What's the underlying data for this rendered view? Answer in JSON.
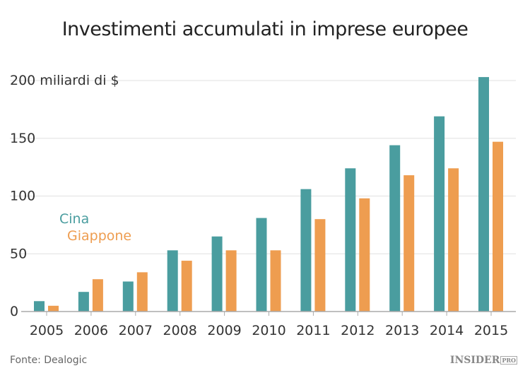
{
  "chart_data": {
    "type": "bar",
    "title": "Investimenti accumulati in imprese europee",
    "ylabel": "200 miliardi di $",
    "categories": [
      "2005",
      "2006",
      "2007",
      "2008",
      "2009",
      "2010",
      "2011",
      "2012",
      "2013",
      "2014",
      "2015"
    ],
    "yticks": [
      "0",
      "50",
      "100",
      "150"
    ],
    "ylim": [
      0,
      210
    ],
    "grid": true,
    "legend_placement": "left-middle",
    "series": [
      {
        "name": "Cina",
        "color": "#4a9d9f",
        "values": [
          9,
          17,
          26,
          53,
          65,
          81,
          106,
          124,
          144,
          169,
          203
        ]
      },
      {
        "name": "Giappone",
        "color": "#ee9d50",
        "values": [
          5,
          28,
          34,
          44,
          53,
          53,
          80,
          98,
          118,
          124,
          147
        ]
      }
    ]
  },
  "footer": {
    "source": "Fonte: Dealogic",
    "logo": "INSIDER",
    "logo_badge": "PRO"
  }
}
